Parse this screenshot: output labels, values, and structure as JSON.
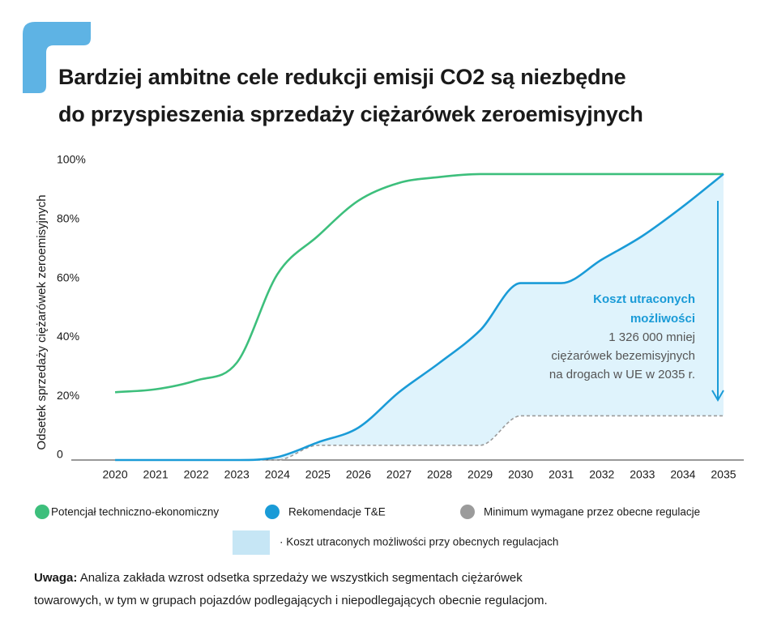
{
  "chart_data": {
    "type": "line",
    "title": [
      "Bardziej ambitne cele redukcji emisji CO2 są niezbędne",
      "do przyspieszenia sprzedaży ciężarówek zeroemisyjnych"
    ],
    "y_label": "Odsetek sprzedaży ciężarówek zeroemisyjnych",
    "x": [
      2020,
      2021,
      2022,
      2023,
      2024,
      2025,
      2026,
      2027,
      2028,
      2029,
      2030,
      2031,
      2032,
      2033,
      2034,
      2035
    ],
    "xlim": [
      2019,
      2035.5
    ],
    "xticks": [
      2020,
      2021,
      2022,
      2023,
      2024,
      2025,
      2026,
      2027,
      2028,
      2029,
      2030,
      2031,
      2032,
      2033,
      2034,
      2035
    ],
    "ylim": [
      0,
      100
    ],
    "yticks": [
      0,
      {
        "value": 20,
        "label": "20%"
      },
      {
        "value": 40,
        "label": "40%"
      },
      {
        "value": 60,
        "label": "60%"
      },
      {
        "value": 80,
        "label": "80%"
      },
      {
        "value": 100,
        "label": "100%"
      }
    ],
    "grid": false,
    "series": [
      {
        "name": "Potencjał techniczno-ekonomiczny",
        "color": "#3dbf7c",
        "style": "solid",
        "values": [
          23,
          24,
          27,
          33,
          63,
          76,
          88,
          94,
          96,
          97,
          97,
          97,
          97,
          97,
          97,
          97
        ]
      },
      {
        "name": "Rekomendacje T&E",
        "color": "#1a9bd7",
        "style": "solid",
        "values": [
          0,
          0,
          0,
          0,
          1,
          6,
          11,
          23,
          33,
          44,
          60,
          60,
          68,
          76,
          86,
          97
        ]
      },
      {
        "name": "Minimum wymagane przez obecne regulacje",
        "color": "#9b9b9b",
        "style": "dashed",
        "values": [
          0,
          0,
          0,
          0,
          0,
          5,
          5,
          5,
          5,
          5,
          15,
          15,
          15,
          15,
          15,
          15
        ]
      }
    ],
    "area": {
      "name": "· Koszt utraconych możliwości przy obecnych regulacjach",
      "color": "#dff3fc",
      "legend_color": "#c6e6f5"
    },
    "annotation": {
      "heading": [
        "Koszt utraconych",
        "możliwości"
      ],
      "lines": [
        "1 326 000 mniej",
        "ciężarówek bezemisyjnych",
        "na drogach w UE w 2035 r."
      ]
    },
    "note_label": "Uwaga:",
    "note": "Analiza zakłada wzrost odsetka sprzedaży we wszystkich segmentach ciężarówek towarowych, w tym w grupach pojazdów podlegających i niepodlegających obecnie regulacjom."
  }
}
